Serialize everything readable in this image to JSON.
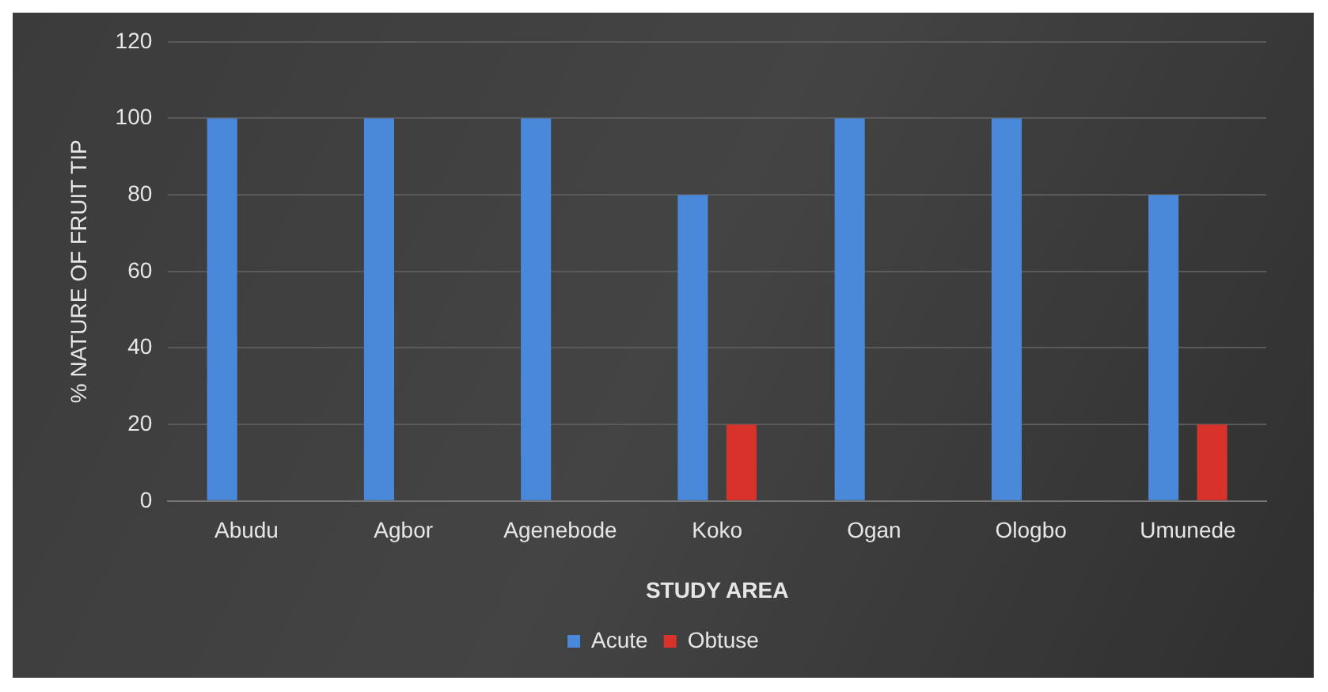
{
  "chart_data": {
    "type": "bar",
    "xlabel": "STUDY AREA",
    "ylabel": "% NATURE OF FRUIT TIP",
    "categories": [
      "Abudu",
      "Agbor",
      "Agenebode",
      "Koko",
      "Ogan",
      "Ologbo",
      "Umunede"
    ],
    "series": [
      {
        "name": "Acute",
        "color": "#4a88d9",
        "values": [
          100,
          100,
          100,
          80,
          100,
          100,
          80
        ]
      },
      {
        "name": "Obtuse",
        "color": "#d8322b",
        "values": [
          0,
          0,
          0,
          20,
          0,
          0,
          20
        ]
      }
    ],
    "ylim": [
      0,
      120
    ],
    "yticks": [
      0,
      20,
      40,
      60,
      80,
      100,
      120
    ],
    "grid": "y",
    "legend": "bottom"
  }
}
